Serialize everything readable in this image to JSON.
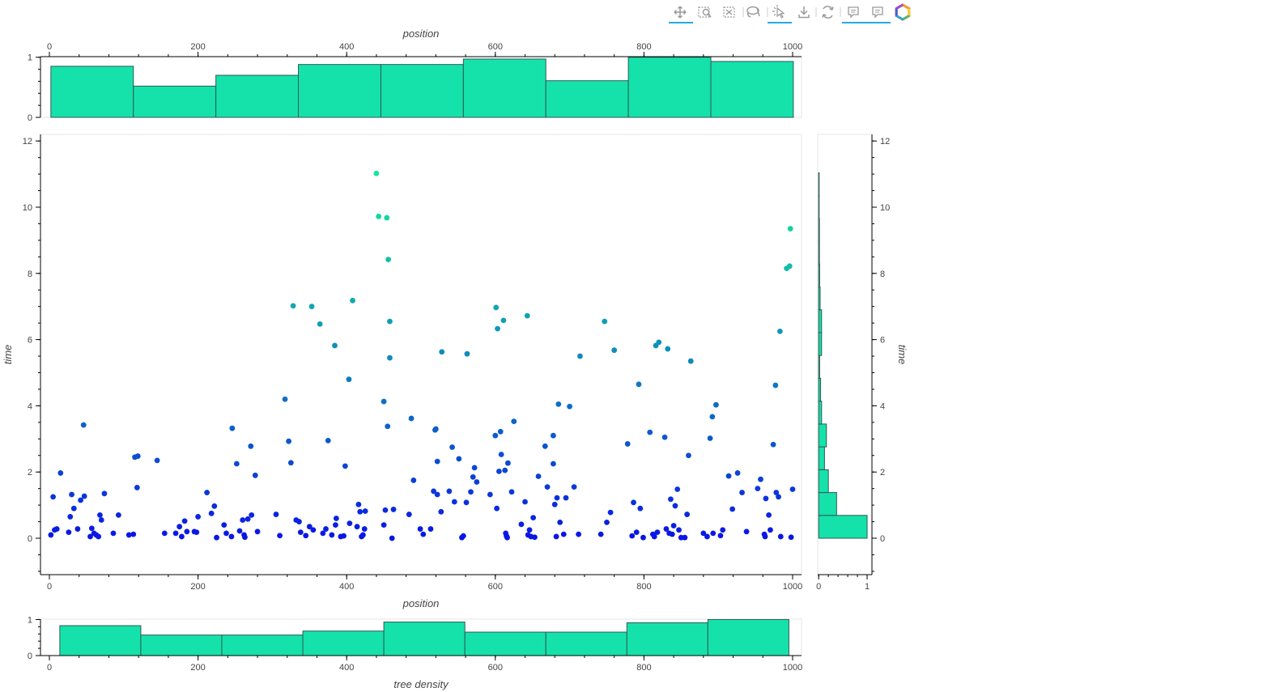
{
  "toolbar": {
    "tools": [
      {
        "name": "pan-tool",
        "icon": "pan-icon",
        "active": true
      },
      {
        "name": "box-zoom-tool",
        "icon": "box-zoom-icon",
        "active": false
      },
      {
        "name": "box-select-tool",
        "icon": "box-select-icon",
        "active": false
      },
      {
        "name": "lasso-select-tool",
        "icon": "lasso-icon",
        "active": false
      },
      {
        "name": "tap-tool",
        "icon": "tap-icon",
        "active": true
      },
      {
        "name": "save-tool",
        "icon": "save-icon",
        "active": false
      },
      {
        "name": "reset-tool",
        "icon": "reset-icon",
        "active": false
      },
      {
        "name": "hover-tool-1",
        "icon": "hover-icon",
        "active": true
      },
      {
        "name": "hover-tool-2",
        "icon": "hover-icon",
        "active": true
      },
      {
        "name": "bokeh-logo",
        "icon": "bokeh-logo-icon",
        "active": false
      }
    ],
    "accent_color": "#26aae1"
  },
  "colors": {
    "bar_fill": "#15e2aa",
    "bar_stroke": "#2f5a55",
    "point_low": "#0a14e6",
    "point_high": "#14e69a"
  },
  "chart_data": [
    {
      "name": "main-scatter",
      "type": "scatter",
      "xlabel": "position",
      "ylabel": "time",
      "xlim": [
        -12,
        1012
      ],
      "ylim": [
        -1.1,
        12.2
      ],
      "xticks": [
        0,
        200,
        400,
        600,
        800,
        1000
      ],
      "yticks": [
        0,
        2,
        4,
        6,
        8,
        10,
        12
      ],
      "points": [
        [
          2,
          0.1
        ],
        [
          5,
          1.25
        ],
        [
          7,
          0.25
        ],
        [
          10,
          0.28
        ],
        [
          15,
          1.97
        ],
        [
          26,
          0.18
        ],
        [
          28,
          0.65
        ],
        [
          30,
          1.32
        ],
        [
          33,
          0.9
        ],
        [
          38,
          0.28
        ],
        [
          42,
          1.15
        ],
        [
          46,
          3.42
        ],
        [
          47,
          1.27
        ],
        [
          55,
          0.05
        ],
        [
          57,
          0.3
        ],
        [
          60,
          0.15
        ],
        [
          63,
          0.1
        ],
        [
          66,
          0.05
        ],
        [
          68,
          0.7
        ],
        [
          70,
          0.55
        ],
        [
          74,
          1.35
        ],
        [
          86,
          0.15
        ],
        [
          93,
          0.7
        ],
        [
          107,
          0.1
        ],
        [
          113,
          0.12
        ],
        [
          115,
          2.45
        ],
        [
          118,
          1.53
        ],
        [
          119,
          2.48
        ],
        [
          145,
          2.35
        ],
        [
          155,
          0.15
        ],
        [
          170,
          0.15
        ],
        [
          175,
          0.35
        ],
        [
          178,
          0.05
        ],
        [
          182,
          0.52
        ],
        [
          185,
          0.2
        ],
        [
          195,
          0.2
        ],
        [
          198,
          0.18
        ],
        [
          200,
          0.65
        ],
        [
          212,
          1.38
        ],
        [
          218,
          0.75
        ],
        [
          222,
          0.97
        ],
        [
          225,
          0.02
        ],
        [
          235,
          0.4
        ],
        [
          238,
          0.15
        ],
        [
          245,
          0.05
        ],
        [
          246,
          3.32
        ],
        [
          252,
          2.25
        ],
        [
          256,
          0.22
        ],
        [
          260,
          0.55
        ],
        [
          262,
          0.1
        ],
        [
          263,
          0.03
        ],
        [
          267,
          0.58
        ],
        [
          271,
          2.78
        ],
        [
          272,
          0.7
        ],
        [
          277,
          1.9
        ],
        [
          280,
          0.2
        ],
        [
          305,
          0.72
        ],
        [
          310,
          0.08
        ],
        [
          317,
          4.2
        ],
        [
          322,
          2.93
        ],
        [
          325,
          2.28
        ],
        [
          328,
          7.02
        ],
        [
          332,
          0.55
        ],
        [
          336,
          0.5
        ],
        [
          338,
          0.18
        ],
        [
          345,
          0.08
        ],
        [
          350,
          0.35
        ],
        [
          353,
          7.0
        ],
        [
          355,
          0.25
        ],
        [
          364,
          6.47
        ],
        [
          368,
          0.15
        ],
        [
          372,
          0.28
        ],
        [
          375,
          2.95
        ],
        [
          380,
          0.1
        ],
        [
          384,
          5.82
        ],
        [
          385,
          0.4
        ],
        [
          386,
          0.6
        ],
        [
          392,
          0.05
        ],
        [
          396,
          0.07
        ],
        [
          398,
          2.18
        ],
        [
          403,
          4.8
        ],
        [
          404,
          0.45
        ],
        [
          408,
          7.18
        ],
        [
          414,
          0.35
        ],
        [
          416,
          1.02
        ],
        [
          418,
          0.8
        ],
        [
          420,
          0.05
        ],
        [
          422,
          0.1
        ],
        [
          424,
          0.28
        ],
        [
          425,
          0.82
        ],
        [
          440,
          11.02
        ],
        [
          443,
          9.72
        ],
        [
          450,
          4.13
        ],
        [
          450,
          0.4
        ],
        [
          452,
          0.85
        ],
        [
          454,
          9.68
        ],
        [
          455,
          3.38
        ],
        [
          456,
          8.42
        ],
        [
          458,
          6.55
        ],
        [
          458,
          5.45
        ],
        [
          461,
          0.0
        ],
        [
          463,
          0.87
        ],
        [
          484,
          0.72
        ],
        [
          487,
          3.62
        ],
        [
          490,
          1.75
        ],
        [
          499,
          0.28
        ],
        [
          503,
          0.12
        ],
        [
          513,
          0.28
        ],
        [
          517,
          1.42
        ],
        [
          519,
          3.27
        ],
        [
          520,
          3.3
        ],
        [
          522,
          2.32
        ],
        [
          522,
          1.32
        ],
        [
          527,
          0.8
        ],
        [
          528,
          5.63
        ],
        [
          538,
          1.42
        ],
        [
          542,
          2.75
        ],
        [
          545,
          1.1
        ],
        [
          551,
          2.4
        ],
        [
          555,
          0.02
        ],
        [
          557,
          0.07
        ],
        [
          561,
          1.08
        ],
        [
          562,
          5.57
        ],
        [
          567,
          1.4
        ],
        [
          570,
          1.85
        ],
        [
          572,
          2.13
        ],
        [
          575,
          1.7
        ],
        [
          593,
          1.32
        ],
        [
          600,
          3.1
        ],
        [
          601,
          6.97
        ],
        [
          602,
          0.9
        ],
        [
          603,
          6.33
        ],
        [
          605,
          2.02
        ],
        [
          607,
          3.22
        ],
        [
          608,
          2.53
        ],
        [
          611,
          6.58
        ],
        [
          613,
          2.05
        ],
        [
          614,
          0.15
        ],
        [
          615,
          0.07
        ],
        [
          616,
          0.02
        ],
        [
          617,
          2.27
        ],
        [
          622,
          1.4
        ],
        [
          625,
          3.53
        ],
        [
          635,
          0.42
        ],
        [
          640,
          1.1
        ],
        [
          643,
          6.72
        ],
        [
          644,
          0.1
        ],
        [
          646,
          0.25
        ],
        [
          648,
          0.05
        ],
        [
          651,
          0.62
        ],
        [
          653,
          0.03
        ],
        [
          658,
          1.87
        ],
        [
          667,
          2.78
        ],
        [
          670,
          1.55
        ],
        [
          678,
          3.1
        ],
        [
          678,
          2.25
        ],
        [
          680,
          1.02
        ],
        [
          682,
          0.05
        ],
        [
          683,
          1.22
        ],
        [
          685,
          4.05
        ],
        [
          687,
          0.48
        ],
        [
          692,
          0.12
        ],
        [
          695,
          1.22
        ],
        [
          700,
          3.98
        ],
        [
          706,
          1.55
        ],
        [
          712,
          0.12
        ],
        [
          714,
          5.5
        ],
        [
          742,
          0.12
        ],
        [
          747,
          6.55
        ],
        [
          750,
          0.48
        ],
        [
          755,
          0.78
        ],
        [
          760,
          5.68
        ],
        [
          778,
          2.85
        ],
        [
          784,
          0.07
        ],
        [
          786,
          1.08
        ],
        [
          790,
          0.18
        ],
        [
          793,
          4.65
        ],
        [
          795,
          0.9
        ],
        [
          799,
          0.02
        ],
        [
          808,
          3.2
        ],
        [
          812,
          0.12
        ],
        [
          814,
          0.05
        ],
        [
          816,
          5.82
        ],
        [
          818,
          0.18
        ],
        [
          820,
          5.92
        ],
        [
          828,
          3.05
        ],
        [
          830,
          0.28
        ],
        [
          832,
          5.72
        ],
        [
          834,
          0.15
        ],
        [
          836,
          1.18
        ],
        [
          838,
          0.12
        ],
        [
          840,
          0.38
        ],
        [
          842,
          0.98
        ],
        [
          845,
          1.48
        ],
        [
          847,
          0.25
        ],
        [
          850,
          0.02
        ],
        [
          855,
          0.02
        ],
        [
          858,
          0.72
        ],
        [
          860,
          2.5
        ],
        [
          863,
          5.35
        ],
        [
          880,
          0.15
        ],
        [
          885,
          0.05
        ],
        [
          889,
          3.02
        ],
        [
          892,
          3.67
        ],
        [
          893,
          0.15
        ],
        [
          897,
          4.03
        ],
        [
          903,
          0.08
        ],
        [
          906,
          0.25
        ],
        [
          914,
          1.88
        ],
        [
          919,
          0.88
        ],
        [
          926,
          1.97
        ],
        [
          932,
          1.38
        ],
        [
          938,
          0.2
        ],
        [
          953,
          1.5
        ],
        [
          957,
          1.78
        ],
        [
          962,
          0.12
        ],
        [
          963,
          0.05
        ],
        [
          964,
          1.2
        ],
        [
          968,
          0.7
        ],
        [
          970,
          0.25
        ],
        [
          974,
          2.83
        ],
        [
          977,
          4.62
        ],
        [
          978,
          1.38
        ],
        [
          981,
          1.25
        ],
        [
          983,
          6.25
        ],
        [
          984,
          0.05
        ],
        [
          992,
          8.15
        ],
        [
          996,
          8.22
        ],
        [
          997,
          9.35
        ],
        [
          998,
          0.03
        ],
        [
          1000,
          1.48
        ]
      ]
    },
    {
      "name": "top-histogram",
      "type": "bar",
      "xlabel": "position",
      "ylabel": "",
      "xlim": [
        -12,
        1012
      ],
      "ylim": [
        0,
        1.01
      ],
      "xticks": [
        0,
        200,
        400,
        600,
        800,
        1000
      ],
      "yticks": [
        0,
        1
      ],
      "bin_edges": [
        2,
        113,
        224,
        335,
        446,
        557,
        668,
        779,
        890,
        1001
      ],
      "values": [
        0.85,
        0.52,
        0.7,
        0.88,
        0.88,
        0.97,
        0.61,
        1.0,
        0.93
      ]
    },
    {
      "name": "bottom-histogram",
      "type": "bar",
      "xlabel": "tree density",
      "ylabel": "",
      "xlim": [
        -12,
        1012
      ],
      "ylim": [
        0,
        1.01
      ],
      "xticks": [
        0,
        200,
        400,
        600,
        800,
        1000
      ],
      "yticks": [
        0,
        1
      ],
      "bin_edges": [
        14,
        123,
        232,
        341,
        450,
        559,
        668,
        777,
        886,
        995
      ],
      "values": [
        0.83,
        0.57,
        0.57,
        0.68,
        0.93,
        0.65,
        0.65,
        0.91,
        1.0
      ]
    },
    {
      "name": "right-histogram",
      "type": "bar",
      "orientation": "horizontal",
      "xlabel": "",
      "ylabel": "time",
      "xlim": [
        -0.02,
        1.1
      ],
      "ylim": [
        -1.1,
        12.2
      ],
      "xticks": [
        0,
        1
      ],
      "yticks": [
        0,
        2,
        4,
        6,
        8,
        10,
        12
      ],
      "bin_edges": [
        0,
        0.69,
        1.38,
        2.07,
        2.76,
        3.45,
        4.14,
        4.83,
        5.52,
        6.21,
        6.9,
        7.59,
        8.28,
        8.97,
        9.66,
        10.35,
        11.04
      ],
      "values": [
        1.0,
        0.37,
        0.2,
        0.12,
        0.16,
        0.06,
        0.04,
        0.02,
        0.06,
        0.06,
        0.03,
        0.02,
        0.015,
        0.015,
        0.01,
        0.01
      ]
    }
  ]
}
